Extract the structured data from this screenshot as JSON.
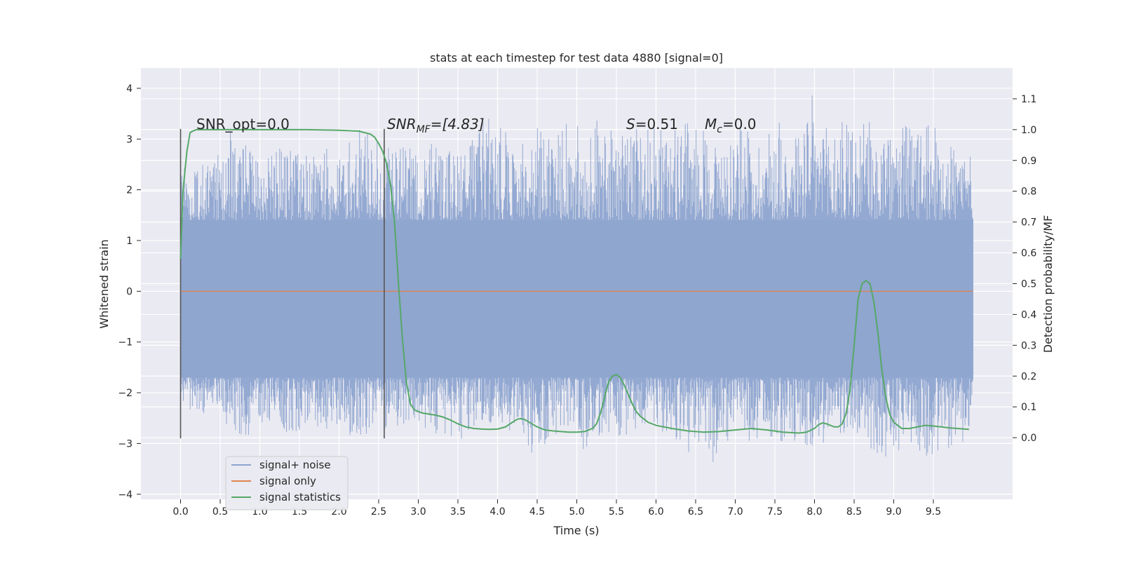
{
  "chart_data": {
    "type": "line",
    "title": "stats at each timestep for test data 4880 [signal=0]",
    "xlabel": "Time (s)",
    "ylabel": "Whitened strain",
    "y2label": "Detection probability/MF",
    "xlim": [
      -0.5,
      10.5
    ],
    "ylim": [
      -4.1,
      4.4
    ],
    "y2lim": [
      -0.2,
      1.2
    ],
    "x_ticks": [
      "0.0",
      "0.5",
      "1.0",
      "1.5",
      "2.0",
      "2.5",
      "3.0",
      "3.5",
      "4.0",
      "4.5",
      "5.0",
      "5.5",
      "6.0",
      "6.5",
      "7.0",
      "7.5",
      "8.0",
      "8.5",
      "9.0",
      "9.5"
    ],
    "y_ticks": [
      "4",
      "3",
      "2",
      "1",
      "0",
      "−1",
      "−2",
      "−3",
      "−4"
    ],
    "y2_ticks": [
      "1.1",
      "1.0",
      "0.9",
      "0.8",
      "0.7",
      "0.6",
      "0.5",
      "0.4",
      "0.3",
      "0.2",
      "0.1",
      "0.0"
    ],
    "grid": true,
    "legend_position": "lower-left",
    "annotations": {
      "snr_opt": "SNR_opt=0.0",
      "snr_mf_main": "SNR",
      "snr_mf_sub": "MF",
      "snr_mf_tail": "=[4.83]",
      "s_main": "S",
      "s_tail": "=0.51",
      "mc_main": "M",
      "mc_sub": "c",
      "mc_tail": "=0.0"
    },
    "vertical_markers": [
      {
        "x": 0.0,
        "y_range": [
          -2.9,
          3.2
        ]
      },
      {
        "x": 2.57,
        "y_range": [
          -2.9,
          3.2
        ]
      }
    ],
    "series": [
      {
        "name": "signal+ noise",
        "color": "#8fa5cf",
        "axis": "left",
        "x_range": [
          0.0,
          10.0
        ],
        "envelope_upper": [
          2.4,
          2.6,
          2.5,
          3.4,
          2.9,
          2.6,
          2.8,
          3.0,
          2.7,
          2.9,
          2.6,
          3.5,
          3.0,
          2.8,
          2.9,
          2.7,
          3.1,
          2.8,
          3.0,
          3.6,
          3.2,
          2.9,
          3.3,
          3.0,
          3.5,
          3.1,
          3.6,
          3.0,
          3.2,
          3.5,
          3.1,
          3.3,
          3.4,
          3.0,
          3.2,
          3.3,
          3.0,
          3.6,
          3.1,
          3.9,
          3.2,
          3.5,
          3.3,
          3.4,
          3.0,
          3.4,
          3.2,
          3.5,
          2.9,
          3.1
        ],
        "envelope_lower": [
          -2.2,
          -2.5,
          -2.4,
          -2.7,
          -2.9,
          -2.6,
          -2.7,
          -2.9,
          -2.6,
          -2.8,
          -2.7,
          -3.0,
          -2.7,
          -2.8,
          -2.6,
          -2.9,
          -2.8,
          -3.1,
          -2.7,
          -2.6,
          -2.7,
          -3.0,
          -3.3,
          -2.8,
          -2.9,
          -3.2,
          -2.8,
          -3.0,
          -2.7,
          -2.8,
          -2.9,
          -3.3,
          -3.0,
          -3.4,
          -2.9,
          -3.1,
          -2.8,
          -3.2,
          -3.0,
          -3.1,
          -3.0,
          -2.8,
          -3.0,
          -3.2,
          -3.3,
          -2.9,
          -3.4,
          -3.1,
          -3.2,
          -2.6
        ],
        "core_band": [
          -1.7,
          1.4
        ]
      },
      {
        "name": "signal only",
        "color": "#dd8452",
        "axis": "left",
        "x": [
          0.0,
          10.0
        ],
        "values": [
          0.0,
          0.0
        ]
      },
      {
        "name": "signal statistics",
        "color": "#55a868",
        "axis": "right",
        "x": [
          0.0,
          0.03,
          0.08,
          0.12,
          0.15,
          0.2,
          0.4,
          0.8,
          1.2,
          1.6,
          2.0,
          2.25,
          2.4,
          2.45,
          2.5,
          2.55,
          2.6,
          2.65,
          2.7,
          2.75,
          2.8,
          2.85,
          2.9,
          2.95,
          3.0,
          3.05,
          3.1,
          3.2,
          3.3,
          3.4,
          3.5,
          3.6,
          3.7,
          3.8,
          3.9,
          4.0,
          4.1,
          4.2,
          4.25,
          4.3,
          4.35,
          4.4,
          4.5,
          4.6,
          4.7,
          4.8,
          4.9,
          5.0,
          5.1,
          5.2,
          5.25,
          5.3,
          5.35,
          5.4,
          5.45,
          5.5,
          5.55,
          5.6,
          5.65,
          5.7,
          5.75,
          5.8,
          5.9,
          6.0,
          6.2,
          6.4,
          6.6,
          6.8,
          7.0,
          7.2,
          7.4,
          7.6,
          7.8,
          7.9,
          8.0,
          8.05,
          8.1,
          8.15,
          8.2,
          8.25,
          8.3,
          8.35,
          8.4,
          8.45,
          8.5,
          8.55,
          8.6,
          8.65,
          8.7,
          8.75,
          8.8,
          8.85,
          8.9,
          8.95,
          9.0,
          9.1,
          9.2,
          9.3,
          9.4,
          9.5,
          9.6,
          9.7,
          9.8,
          9.9,
          9.95
        ],
        "values": [
          0.58,
          0.8,
          0.93,
          0.99,
          0.995,
          1.0,
          1.0,
          1.0,
          1.0,
          1.0,
          0.998,
          0.995,
          0.985,
          0.975,
          0.955,
          0.93,
          0.89,
          0.82,
          0.7,
          0.5,
          0.32,
          0.18,
          0.11,
          0.09,
          0.085,
          0.08,
          0.078,
          0.074,
          0.068,
          0.058,
          0.045,
          0.035,
          0.03,
          0.028,
          0.027,
          0.028,
          0.035,
          0.052,
          0.06,
          0.062,
          0.058,
          0.05,
          0.035,
          0.025,
          0.022,
          0.02,
          0.018,
          0.018,
          0.02,
          0.03,
          0.045,
          0.08,
          0.13,
          0.18,
          0.2,
          0.205,
          0.195,
          0.17,
          0.14,
          0.11,
          0.085,
          0.07,
          0.05,
          0.04,
          0.03,
          0.022,
          0.018,
          0.02,
          0.025,
          0.03,
          0.025,
          0.018,
          0.015,
          0.018,
          0.03,
          0.042,
          0.048,
          0.045,
          0.04,
          0.035,
          0.035,
          0.045,
          0.08,
          0.16,
          0.3,
          0.45,
          0.5,
          0.51,
          0.5,
          0.44,
          0.34,
          0.22,
          0.13,
          0.075,
          0.05,
          0.03,
          0.03,
          0.035,
          0.04,
          0.038,
          0.035,
          0.032,
          0.03,
          0.028,
          0.027
        ]
      }
    ]
  },
  "colors": {
    "plot_background": "#eaeaf2",
    "grid": "#ffffff",
    "text": "#262626",
    "marker": "#555555"
  }
}
